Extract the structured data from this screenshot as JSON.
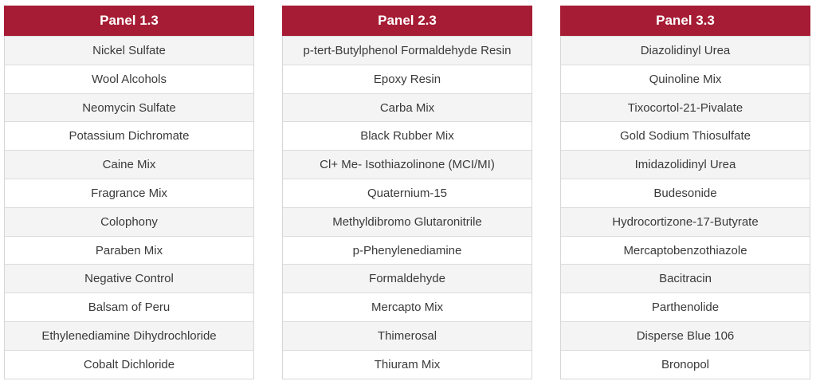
{
  "colors": {
    "header_bg": "#a61c34",
    "header_text": "#ffffff",
    "row_alt_bg": "#f4f4f4",
    "border": "#dcdcdc"
  },
  "panels": [
    {
      "title": "Panel 1.3",
      "items": [
        "Nickel Sulfate",
        "Wool Alcohols",
        "Neomycin Sulfate",
        "Potassium Dichromate",
        "Caine Mix",
        "Fragrance Mix",
        "Colophony",
        "Paraben Mix",
        "Negative Control",
        "Balsam of Peru",
        "Ethylenediamine Dihydrochloride",
        "Cobalt Dichloride"
      ]
    },
    {
      "title": "Panel 2.3",
      "items": [
        "p-tert-Butylphenol Formaldehyde Resin",
        "Epoxy Resin",
        "Carba Mix",
        "Black Rubber Mix",
        "Cl+ Me- Isothiazolinone (MCI/MI)",
        "Quaternium-15",
        "Methyldibromo Glutaronitrile",
        "p-Phenylenediamine",
        "Formaldehyde",
        "Mercapto Mix",
        "Thimerosal",
        "Thiuram Mix"
      ]
    },
    {
      "title": "Panel 3.3",
      "items": [
        "Diazolidinyl Urea",
        "Quinoline Mix",
        "Tixocortol-21-Pivalate",
        "Gold Sodium Thiosulfate",
        "Imidazolidinyl Urea",
        "Budesonide",
        "Hydrocortizone-17-Butyrate",
        "Mercaptobenzothiazole",
        "Bacitracin",
        "Parthenolide",
        "Disperse Blue 106",
        "Bronopol"
      ]
    }
  ]
}
